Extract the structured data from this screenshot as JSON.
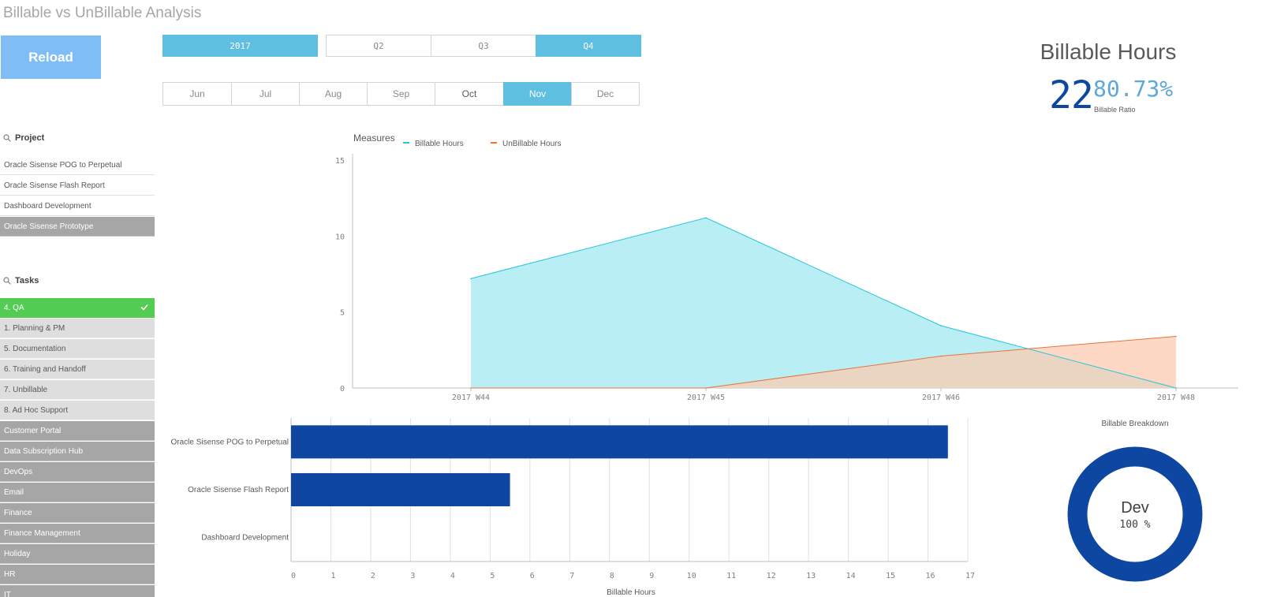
{
  "app": {
    "title": "Billable vs UnBillable Analysis"
  },
  "toolbar": {
    "reload_label": "Reload"
  },
  "filters": {
    "year": "2017",
    "quarters": [
      "Q2",
      "Q3",
      "Q4"
    ],
    "selected_quarter": "Q4",
    "months": [
      "Jun",
      "Jul",
      "Aug",
      "Sep",
      "Oct",
      "Nov",
      "Dec"
    ],
    "selected_month": "Nov"
  },
  "kpi": {
    "title": "Billable Hours",
    "value": "22",
    "ratio": "80.73%",
    "ratio_label": "Billable Ratio"
  },
  "project_list": {
    "title": "Project",
    "items": [
      {
        "label": "Oracle Sisense POG to Perpetual",
        "state": "possible"
      },
      {
        "label": "Oracle Sisense Flash Report",
        "state": "possible"
      },
      {
        "label": "Dashboard Development",
        "state": "possible"
      },
      {
        "label": "Oracle Sisense Prototype",
        "state": "excluded"
      }
    ]
  },
  "tasks_list": {
    "title": "Tasks",
    "items": [
      {
        "label": "4. QA",
        "state": "selected"
      },
      {
        "label": "1. Planning & PM",
        "state": "alternative"
      },
      {
        "label": "5. Documentation",
        "state": "alternative"
      },
      {
        "label": "6. Training and Handoff",
        "state": "alternative"
      },
      {
        "label": "7. Unbillable",
        "state": "alternative"
      },
      {
        "label": "8. Ad Hoc Support",
        "state": "alternative"
      },
      {
        "label": "Customer Portal",
        "state": "excluded"
      },
      {
        "label": "Data Subscription Hub",
        "state": "excluded"
      },
      {
        "label": "DevOps",
        "state": "excluded"
      },
      {
        "label": "Email",
        "state": "excluded"
      },
      {
        "label": "Finance",
        "state": "excluded"
      },
      {
        "label": "Finance Management",
        "state": "excluded"
      },
      {
        "label": "Holiday",
        "state": "excluded"
      },
      {
        "label": "HR",
        "state": "excluded"
      },
      {
        "label": "IT",
        "state": "excluded"
      }
    ]
  },
  "chart_data": [
    {
      "type": "area",
      "legend_title": "Measures",
      "categories": [
        "2017 W44",
        "2017 W45",
        "2017 W46",
        "2017 W48"
      ],
      "series": [
        {
          "name": "Billable Hours",
          "values": [
            7.2,
            11.2,
            4.1,
            0
          ],
          "color": "#26c6da",
          "fill": "#b8eef4"
        },
        {
          "name": "UnBillable Hours",
          "values": [
            0,
            0,
            2.1,
            3.4
          ],
          "color": "#e8743b",
          "fill": "#fbcbb2"
        }
      ],
      "yticks": [
        0,
        5,
        10,
        15
      ],
      "ylim": [
        0,
        15
      ],
      "grid": false,
      "legend_position": "top"
    },
    {
      "type": "bar",
      "orientation": "horizontal",
      "categories": [
        "Oracle Sisense POG to Perpetual",
        "Oracle Sisense Flash Report",
        "Dashboard Development"
      ],
      "values": [
        16.5,
        5.5,
        0
      ],
      "color": "#0d47a1",
      "xlabel": "Billable Hours",
      "xticks": [
        0,
        1,
        2,
        3,
        4,
        5,
        6,
        7,
        8,
        9,
        10,
        11,
        12,
        13,
        14,
        15,
        16,
        17
      ],
      "xlim": [
        0,
        17
      ],
      "grid": true
    },
    {
      "type": "pie",
      "title": "Billable Breakdown",
      "slices": [
        {
          "label": "Dev",
          "value": 100,
          "percent_label": "100 %",
          "color": "#0d47a1"
        }
      ]
    }
  ]
}
